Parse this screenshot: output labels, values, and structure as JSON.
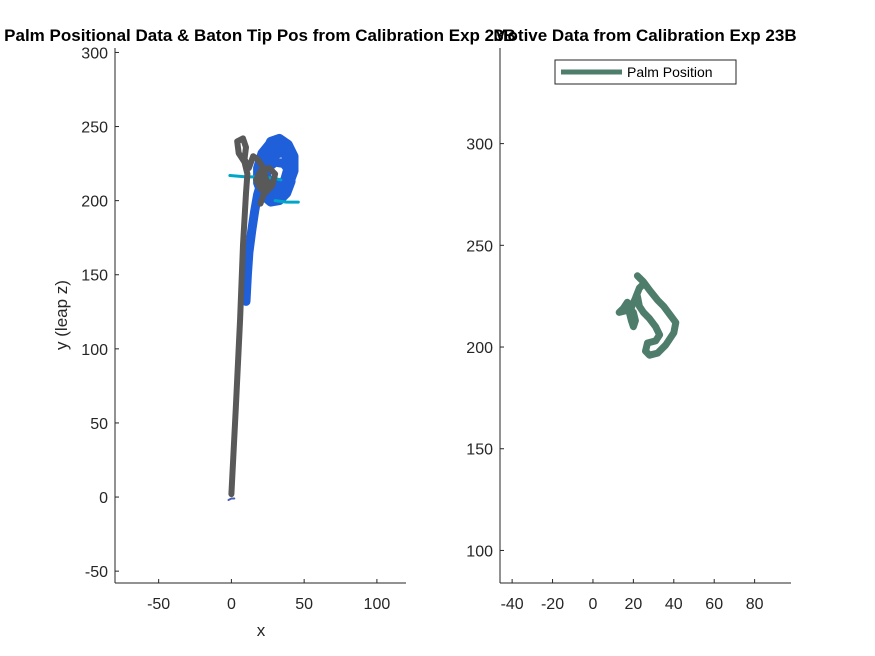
{
  "chart_data": [
    {
      "type": "line",
      "title": "Palm Positional Data & Baton Tip Pos from Calibration Exp 23B",
      "xlabel": "x",
      "ylabel": "y (leap z)",
      "xlim": [
        -80,
        120
      ],
      "ylim": [
        -58,
        303
      ],
      "xticks": [
        -50,
        0,
        50,
        100
      ],
      "yticks": [
        -50,
        0,
        50,
        100,
        150,
        200,
        250,
        300
      ],
      "grid": false,
      "series": [
        {
          "color": "#1f5fd9",
          "values": [
            [
              10,
              132
            ],
            [
              11,
              150
            ],
            [
              12,
              165
            ],
            [
              14,
              180
            ],
            [
              16,
              193
            ],
            [
              18,
              204
            ],
            [
              21,
              214
            ],
            [
              25,
              222
            ],
            [
              30,
              226
            ],
            [
              36,
              225
            ],
            [
              40,
              220
            ],
            [
              41,
              213
            ],
            [
              38,
              205
            ],
            [
              33,
              200
            ],
            [
              27,
              199
            ],
            [
              21,
              204
            ],
            [
              18,
              212
            ],
            [
              18,
              222
            ],
            [
              21,
              232
            ],
            [
              26,
              238
            ],
            [
              32,
              238
            ],
            [
              37,
              232
            ],
            [
              39,
              222
            ],
            [
              36,
              212
            ],
            [
              30,
              206
            ],
            [
              25,
              208
            ],
            [
              22,
              216
            ],
            [
              22,
              226
            ],
            [
              25,
              234
            ],
            [
              31,
              238
            ],
            [
              38,
              236
            ],
            [
              42,
              228
            ],
            [
              42,
              218
            ],
            [
              38,
              210
            ],
            [
              32,
              207
            ],
            [
              27,
              210
            ],
            [
              24,
              217
            ],
            [
              25,
              225
            ],
            [
              30,
              231
            ],
            [
              36,
              233
            ],
            [
              40,
              228
            ],
            [
              40,
              219
            ],
            [
              35,
              212
            ],
            [
              29,
              210
            ],
            [
              24,
              214
            ],
            [
              22,
              222
            ],
            [
              23,
              232
            ],
            [
              27,
              240
            ],
            [
              33,
              242
            ],
            [
              39,
              238
            ],
            [
              43,
              230
            ],
            [
              43,
              220
            ],
            [
              40,
              212
            ],
            [
              34,
              206
            ],
            [
              28,
              204
            ]
          ]
        },
        {
          "color": "#00a6c8",
          "values": [
            [
              -1,
              217
            ],
            [
              10,
              216
            ],
            [
              20,
              216
            ],
            [
              30,
              215
            ],
            [
              34,
              214
            ]
          ]
        },
        {
          "color": "#00a6c8",
          "values": [
            [
              30,
              200
            ],
            [
              38,
              199
            ],
            [
              46,
              199
            ]
          ]
        },
        {
          "color": "#595959",
          "values": [
            [
              0,
              2
            ],
            [
              3,
              60
            ],
            [
              6,
              120
            ],
            [
              8,
              170
            ],
            [
              10,
              205
            ],
            [
              11,
              218
            ],
            [
              9,
              226
            ],
            [
              5,
              232
            ],
            [
              4,
              240
            ],
            [
              8,
              242
            ],
            [
              10,
              236
            ],
            [
              9,
              228
            ],
            [
              12,
              222
            ],
            [
              15,
              230
            ],
            [
              18,
              228
            ],
            [
              22,
              222
            ],
            [
              24,
              214
            ],
            [
              20,
              208
            ],
            [
              17,
              214
            ],
            [
              20,
              220
            ],
            [
              26,
              222
            ],
            [
              30,
              218
            ],
            [
              28,
              210
            ],
            [
              23,
              205
            ],
            [
              20,
              210
            ],
            [
              22,
              218
            ],
            [
              25,
              212
            ],
            [
              22,
              204
            ],
            [
              20,
              198
            ]
          ]
        },
        {
          "color": "#4a5fb0",
          "values": [
            [
              -2,
              -2
            ],
            [
              0,
              -1
            ],
            [
              2,
              -1
            ]
          ]
        }
      ]
    },
    {
      "type": "line",
      "title": "Motive Data from Calibration Exp 23B",
      "xlabel": "",
      "ylabel": "",
      "xlim": [
        -46,
        98
      ],
      "ylim": [
        84,
        347
      ],
      "xticks": [
        -40,
        -20,
        0,
        20,
        40,
        60,
        80
      ],
      "yticks": [
        100,
        150,
        200,
        250,
        300
      ],
      "legend_position": "top",
      "grid": false,
      "series": [
        {
          "name": "Palm Position",
          "color": "#4e7d6b",
          "values": [
            [
              22,
              235
            ],
            [
              25,
              232
            ],
            [
              28,
              228
            ],
            [
              32,
              223
            ],
            [
              35,
              220
            ],
            [
              38,
              216
            ],
            [
              41,
              212
            ],
            [
              40,
              207
            ],
            [
              36,
              201
            ],
            [
              32,
              197
            ],
            [
              28,
              196
            ],
            [
              26,
              198
            ],
            [
              27,
              202
            ],
            [
              31,
              203
            ],
            [
              33,
              206
            ],
            [
              31,
              210
            ],
            [
              28,
              214
            ],
            [
              25,
              217
            ],
            [
              23,
              220
            ],
            [
              22,
              225
            ],
            [
              20,
              222
            ],
            [
              17,
              218
            ],
            [
              13,
              217
            ],
            [
              15,
              219
            ],
            [
              17,
              222
            ],
            [
              18,
              219
            ],
            [
              20,
              217
            ],
            [
              21,
              213
            ],
            [
              20,
              210
            ],
            [
              19,
              213
            ],
            [
              18,
              217
            ],
            [
              21,
              224
            ],
            [
              23,
              229
            ],
            [
              25,
              231
            ]
          ]
        }
      ]
    }
  ]
}
